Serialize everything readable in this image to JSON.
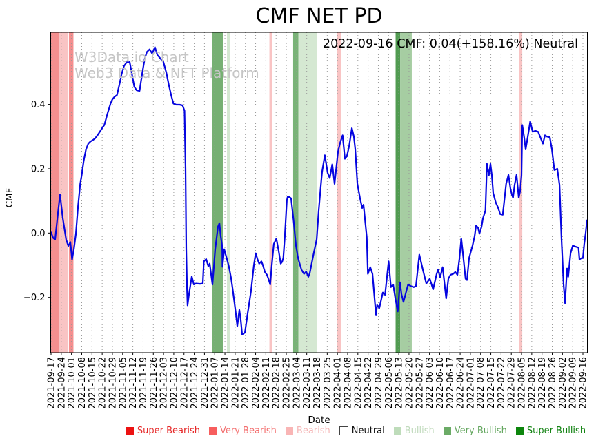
{
  "title": "CMF NET PD",
  "annotation": "2022-09-16 CMF: 0.04(+158.16%) Neutral",
  "watermark": {
    "line1": "W3Data.io Chart",
    "line2": "Web3 Data & NFT Platform"
  },
  "chart_data": {
    "type": "line",
    "title": "CMF NET PD",
    "xlabel": "Date",
    "ylabel": "CMF",
    "x_unit": "weeks_since_first_tick",
    "x_tick_labels": [
      "2021-09-17",
      "2021-09-24",
      "2021-10-01",
      "2021-10-08",
      "2021-10-15",
      "2021-10-22",
      "2021-10-29",
      "2021-11-05",
      "2021-11-12",
      "2021-11-19",
      "2021-11-26",
      "2021-12-03",
      "2021-12-10",
      "2021-12-17",
      "2021-12-24",
      "2021-12-31",
      "2022-01-07",
      "2022-01-14",
      "2022-01-21",
      "2022-01-28",
      "2022-02-04",
      "2022-02-11",
      "2022-02-18",
      "2022-02-25",
      "2022-03-04",
      "2022-03-11",
      "2022-03-18",
      "2022-03-25",
      "2022-04-01",
      "2022-04-08",
      "2022-04-15",
      "2022-04-22",
      "2022-04-29",
      "2022-05-06",
      "2022-05-13",
      "2022-05-20",
      "2022-05-27",
      "2022-06-03",
      "2022-06-10",
      "2022-06-17",
      "2022-06-24",
      "2022-07-01",
      "2022-07-08",
      "2022-07-15",
      "2022-07-22",
      "2022-07-29",
      "2022-08-05",
      "2022-08-12",
      "2022-08-19",
      "2022-08-26",
      "2022-09-02",
      "2022-09-09",
      "2022-09-16"
    ],
    "yticks": [
      0.4,
      0.2,
      0.0,
      -0.2
    ],
    "ytick_labels": [
      "0.4",
      "0.2",
      "0.0",
      "−0.2"
    ],
    "ylim": [
      -0.372,
      0.624
    ],
    "grid": {
      "vertical": true,
      "horizontal": false,
      "style": "dotted",
      "color": "#999999"
    },
    "line": {
      "name": "CMF",
      "color": "#0505e0",
      "width": 2.2
    },
    "points": [
      [
        0,
        0.002
      ],
      [
        0.2,
        -0.015
      ],
      [
        0.4,
        -0.02
      ],
      [
        0.6,
        0.04
      ],
      [
        0.88,
        0.12
      ],
      [
        1.15,
        0.045
      ],
      [
        1.48,
        -0.02
      ],
      [
        1.69,
        -0.04
      ],
      [
        1.89,
        -0.028
      ],
      [
        2.06,
        -0.082
      ],
      [
        2.23,
        -0.05
      ],
      [
        2.43,
        -0.003
      ],
      [
        2.63,
        0.08
      ],
      [
        2.85,
        0.153
      ],
      [
        3.0,
        0.181
      ],
      [
        3.19,
        0.224
      ],
      [
        3.42,
        0.26
      ],
      [
        3.64,
        0.278
      ],
      [
        3.86,
        0.285
      ],
      [
        4.09,
        0.289
      ],
      [
        4.32,
        0.295
      ],
      [
        4.54,
        0.304
      ],
      [
        4.77,
        0.315
      ],
      [
        4.99,
        0.326
      ],
      [
        5.21,
        0.336
      ],
      [
        5.55,
        0.375
      ],
      [
        5.82,
        0.403
      ],
      [
        6.0,
        0.416
      ],
      [
        6.22,
        0.424
      ],
      [
        6.45,
        0.429
      ],
      [
        6.68,
        0.461
      ],
      [
        6.9,
        0.494
      ],
      [
        7.13,
        0.519
      ],
      [
        7.42,
        0.532
      ],
      [
        7.69,
        0.532
      ],
      [
        7.91,
        0.494
      ],
      [
        8.14,
        0.455
      ],
      [
        8.36,
        0.444
      ],
      [
        8.65,
        0.442
      ],
      [
        8.92,
        0.498
      ],
      [
        9.15,
        0.541
      ],
      [
        9.37,
        0.563
      ],
      [
        9.64,
        0.571
      ],
      [
        9.89,
        0.558
      ],
      [
        10.16,
        0.578
      ],
      [
        10.39,
        0.554
      ],
      [
        10.68,
        0.543
      ],
      [
        10.99,
        0.532
      ],
      [
        11.28,
        0.498
      ],
      [
        11.51,
        0.461
      ],
      [
        11.74,
        0.429
      ],
      [
        11.96,
        0.403
      ],
      [
        12.25,
        0.399
      ],
      [
        12.57,
        0.399
      ],
      [
        12.86,
        0.397
      ],
      [
        13.05,
        0.38
      ],
      [
        13.15,
        0.2
      ],
      [
        13.22,
        -0.05
      ],
      [
        13.29,
        -0.17
      ],
      [
        13.35,
        -0.225
      ],
      [
        13.49,
        -0.19
      ],
      [
        13.76,
        -0.135
      ],
      [
        13.96,
        -0.16
      ],
      [
        14.16,
        -0.157
      ],
      [
        14.57,
        -0.158
      ],
      [
        14.84,
        -0.157
      ],
      [
        14.94,
        -0.088
      ],
      [
        15.17,
        -0.081
      ],
      [
        15.38,
        -0.103
      ],
      [
        15.51,
        -0.095
      ],
      [
        15.78,
        -0.16
      ],
      [
        16.05,
        -0.05
      ],
      [
        16.32,
        0.02
      ],
      [
        16.46,
        0.031
      ],
      [
        16.59,
        -0.01
      ],
      [
        16.73,
        -0.04
      ],
      [
        16.76,
        -0.105
      ],
      [
        16.93,
        -0.05
      ],
      [
        17.06,
        -0.065
      ],
      [
        17.27,
        -0.09
      ],
      [
        17.4,
        -0.106
      ],
      [
        17.6,
        -0.14
      ],
      [
        17.74,
        -0.17
      ],
      [
        18.01,
        -0.235
      ],
      [
        18.21,
        -0.289
      ],
      [
        18.41,
        -0.239
      ],
      [
        18.55,
        -0.27
      ],
      [
        18.68,
        -0.315
      ],
      [
        18.95,
        -0.31
      ],
      [
        19.22,
        -0.25
      ],
      [
        19.56,
        -0.179
      ],
      [
        19.83,
        -0.1
      ],
      [
        20.01,
        -0.063
      ],
      [
        20.17,
        -0.08
      ],
      [
        20.35,
        -0.095
      ],
      [
        20.57,
        -0.088
      ],
      [
        20.71,
        -0.1
      ],
      [
        20.91,
        -0.121
      ],
      [
        21.11,
        -0.13
      ],
      [
        21.25,
        -0.142
      ],
      [
        21.43,
        -0.16
      ],
      [
        21.58,
        -0.1
      ],
      [
        21.78,
        -0.034
      ],
      [
        22.03,
        -0.017
      ],
      [
        22.26,
        -0.056
      ],
      [
        22.46,
        -0.095
      ],
      [
        22.59,
        -0.09
      ],
      [
        22.71,
        -0.078
      ],
      [
        22.86,
        -0.01
      ],
      [
        23.05,
        0.101
      ],
      [
        23.13,
        0.112
      ],
      [
        23.27,
        0.113
      ],
      [
        23.47,
        0.108
      ],
      [
        23.72,
        0.037
      ],
      [
        23.94,
        -0.038
      ],
      [
        24.15,
        -0.078
      ],
      [
        24.48,
        -0.114
      ],
      [
        24.73,
        -0.127
      ],
      [
        24.95,
        -0.12
      ],
      [
        25.16,
        -0.136
      ],
      [
        25.29,
        -0.125
      ],
      [
        25.63,
        -0.071
      ],
      [
        25.97,
        -0.019
      ],
      [
        26.17,
        0.07
      ],
      [
        26.37,
        0.145
      ],
      [
        26.5,
        0.19
      ],
      [
        26.77,
        0.242
      ],
      [
        27.04,
        0.188
      ],
      [
        27.25,
        0.171
      ],
      [
        27.5,
        0.214
      ],
      [
        27.72,
        0.153
      ],
      [
        28.06,
        0.253
      ],
      [
        28.26,
        0.28
      ],
      [
        28.51,
        0.304
      ],
      [
        28.73,
        0.231
      ],
      [
        28.93,
        0.239
      ],
      [
        29.14,
        0.27
      ],
      [
        29.41,
        0.326
      ],
      [
        29.61,
        0.3
      ],
      [
        29.74,
        0.261
      ],
      [
        29.95,
        0.153
      ],
      [
        30.2,
        0.11
      ],
      [
        30.42,
        0.078
      ],
      [
        30.55,
        0.088
      ],
      [
        30.87,
        -0.013
      ],
      [
        30.98,
        -0.127
      ],
      [
        31.21,
        -0.106
      ],
      [
        31.43,
        -0.127
      ],
      [
        31.77,
        -0.256
      ],
      [
        31.88,
        -0.224
      ],
      [
        32.1,
        -0.233
      ],
      [
        32.44,
        -0.185
      ],
      [
        32.66,
        -0.192
      ],
      [
        33.01,
        -0.088
      ],
      [
        33.23,
        -0.168
      ],
      [
        33.45,
        -0.16
      ],
      [
        33.65,
        -0.2
      ],
      [
        33.9,
        -0.244
      ],
      [
        34.12,
        -0.153
      ],
      [
        34.26,
        -0.19
      ],
      [
        34.46,
        -0.214
      ],
      [
        34.66,
        -0.19
      ],
      [
        34.91,
        -0.16
      ],
      [
        35.2,
        -0.165
      ],
      [
        35.47,
        -0.168
      ],
      [
        35.68,
        -0.165
      ],
      [
        36.01,
        -0.067
      ],
      [
        36.35,
        -0.114
      ],
      [
        36.69,
        -0.157
      ],
      [
        37.03,
        -0.142
      ],
      [
        37.36,
        -0.175
      ],
      [
        37.7,
        -0.127
      ],
      [
        37.84,
        -0.114
      ],
      [
        38.04,
        -0.138
      ],
      [
        38.29,
        -0.106
      ],
      [
        38.63,
        -0.203
      ],
      [
        38.85,
        -0.142
      ],
      [
        39.05,
        -0.13
      ],
      [
        39.32,
        -0.127
      ],
      [
        39.52,
        -0.121
      ],
      [
        39.73,
        -0.13
      ],
      [
        39.93,
        -0.08
      ],
      [
        40.11,
        -0.017
      ],
      [
        40.26,
        -0.06
      ],
      [
        40.53,
        -0.142
      ],
      [
        40.67,
        -0.146
      ],
      [
        40.87,
        -0.078
      ],
      [
        41.21,
        -0.039
      ],
      [
        41.41,
        -0.01
      ],
      [
        41.55,
        0.023
      ],
      [
        41.75,
        0.017
      ],
      [
        41.88,
        -0.002
      ],
      [
        42.09,
        0.02
      ],
      [
        42.22,
        0.045
      ],
      [
        42.47,
        0.07
      ],
      [
        42.62,
        0.215
      ],
      [
        42.81,
        0.18
      ],
      [
        42.96,
        0.215
      ],
      [
        43.1,
        0.18
      ],
      [
        43.23,
        0.124
      ],
      [
        43.48,
        0.095
      ],
      [
        43.7,
        0.08
      ],
      [
        43.91,
        0.059
      ],
      [
        44.16,
        0.057
      ],
      [
        44.31,
        0.1
      ],
      [
        44.49,
        0.153
      ],
      [
        44.72,
        0.181
      ],
      [
        44.92,
        0.138
      ],
      [
        45.05,
        0.12
      ],
      [
        45.17,
        0.11
      ],
      [
        45.32,
        0.15
      ],
      [
        45.51,
        0.181
      ],
      [
        45.73,
        0.11
      ],
      [
        45.86,
        0.13
      ],
      [
        46.0,
        0.18
      ],
      [
        46.07,
        0.336
      ],
      [
        46.27,
        0.295
      ],
      [
        46.4,
        0.26
      ],
      [
        46.61,
        0.3
      ],
      [
        46.85,
        0.347
      ],
      [
        47.08,
        0.315
      ],
      [
        47.35,
        0.318
      ],
      [
        47.62,
        0.315
      ],
      [
        47.87,
        0.295
      ],
      [
        48.09,
        0.278
      ],
      [
        48.29,
        0.304
      ],
      [
        48.49,
        0.3
      ],
      [
        48.76,
        0.298
      ],
      [
        48.97,
        0.26
      ],
      [
        49.21,
        0.196
      ],
      [
        49.37,
        0.198
      ],
      [
        49.5,
        0.2
      ],
      [
        49.71,
        0.15
      ],
      [
        49.91,
        -0.02
      ],
      [
        50.11,
        -0.16
      ],
      [
        50.25,
        -0.218
      ],
      [
        50.45,
        -0.11
      ],
      [
        50.56,
        -0.136
      ],
      [
        50.79,
        -0.063
      ],
      [
        51.01,
        -0.039
      ],
      [
        51.26,
        -0.042
      ],
      [
        51.57,
        -0.045
      ],
      [
        51.66,
        -0.082
      ],
      [
        51.86,
        -0.078
      ],
      [
        52.0,
        -0.078
      ],
      [
        52.13,
        -0.034
      ],
      [
        52.27,
        0.0
      ],
      [
        52.4,
        0.04
      ]
    ],
    "bands": [
      {
        "from": -0.03,
        "to": 0.81,
        "category": "Very Bearish",
        "color": "#f48f8f"
      },
      {
        "from": 0.81,
        "to": 1.62,
        "category": "Bearish",
        "color": "#f9c4c4"
      },
      {
        "from": 1.75,
        "to": 2.19,
        "category": "Very Bearish",
        "color": "#f48f8f"
      },
      {
        "from": 15.78,
        "to": 16.86,
        "category": "Very Bullish",
        "color": "#76b073"
      },
      {
        "from": 17.2,
        "to": 17.47,
        "category": "Bullish",
        "color": "#d5e8d2"
      },
      {
        "from": 21.35,
        "to": 21.65,
        "category": "Bearish",
        "color": "#f9c4c4"
      },
      {
        "from": 23.67,
        "to": 24.18,
        "category": "Very Bullish",
        "color": "#79b377"
      },
      {
        "from": 24.18,
        "to": 25.97,
        "category": "Bullish",
        "color": "#d5e8d2"
      },
      {
        "from": 27.99,
        "to": 28.36,
        "category": "Bearish",
        "color": "#f9c4c4"
      },
      {
        "from": 33.69,
        "to": 34.13,
        "category": "Very Bullish",
        "color": "#519b51"
      },
      {
        "from": 34.13,
        "to": 35.27,
        "category": "Very Bullish",
        "color": "#a6cda2"
      },
      {
        "from": 45.77,
        "to": 46.07,
        "category": "Bearish",
        "color": "#f9c4c4"
      }
    ]
  },
  "legend": {
    "items": [
      {
        "label": "Super Bearish",
        "swatch": "#ec1212",
        "text_color": "#e62929",
        "border": ""
      },
      {
        "label": "Very Bearish",
        "swatch": "#f75e5e",
        "text_color": "#f37070",
        "border": ""
      },
      {
        "label": "Bearish",
        "swatch": "#f9b5b5",
        "text_color": "#f5b8b8",
        "border": ""
      },
      {
        "label": "Neutral",
        "swatch": "#ffffff",
        "text_color": "#111111",
        "border": "#444444"
      },
      {
        "label": "Bullish",
        "swatch": "#bedcba",
        "text_color": "#c0dabc",
        "border": ""
      },
      {
        "label": "Very Bullish",
        "swatch": "#6bab66",
        "text_color": "#63a65e",
        "border": ""
      },
      {
        "label": "Super Bullish",
        "swatch": "#0d860d",
        "text_color": "#118211",
        "border": ""
      }
    ]
  }
}
